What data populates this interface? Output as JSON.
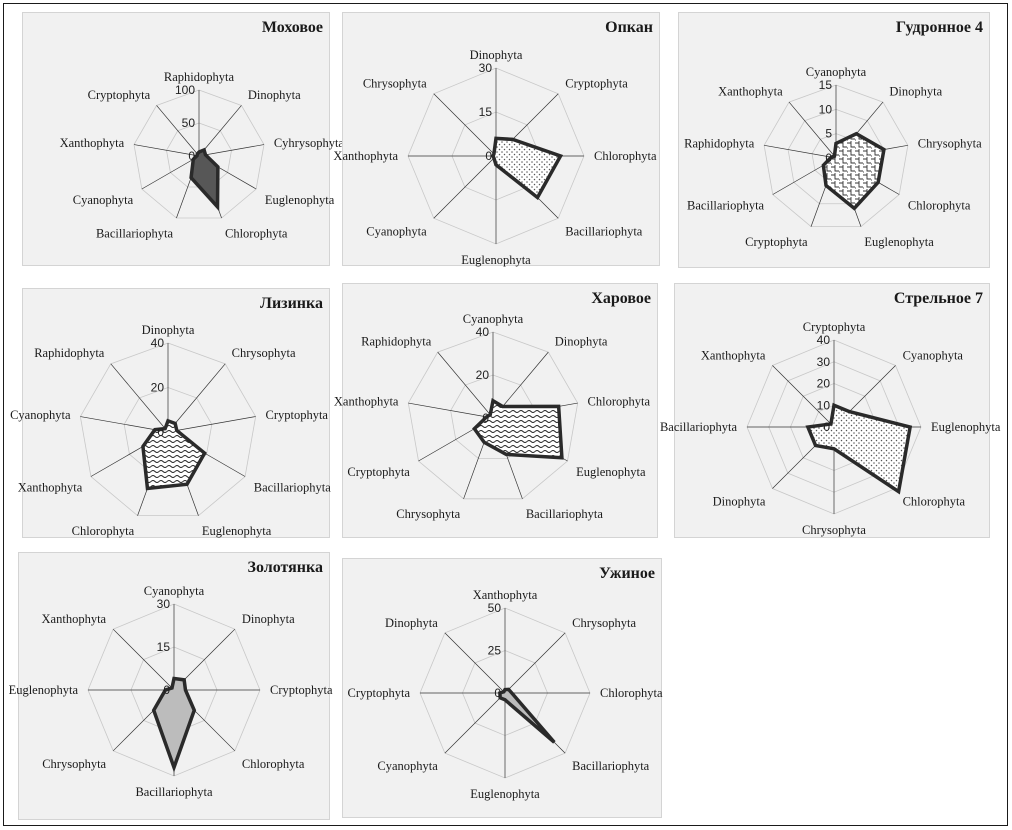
{
  "chart_data": [
    {
      "type": "radar",
      "title": "Моховое",
      "axes": [
        "Raphidophyta",
        "Dinophyta",
        "Cyhrysophyta",
        "Euglenophyta",
        "Chlorophyta",
        "Bacillariophyta",
        "Cyanophyta",
        "Xanthophyta",
        "Cryptophyta"
      ],
      "values": [
        6,
        12,
        10,
        33,
        82,
        35,
        10,
        3,
        4
      ],
      "rmax": 100,
      "ticks": [
        0,
        50,
        100
      ],
      "fill": "solid-dark"
    },
    {
      "type": "radar",
      "title": "Опкан",
      "axes": [
        "Dinophyta",
        "Cryptophyta",
        "Chlorophyta",
        "Bacillariophyta",
        "Euglenophyta",
        "Cyanophyta",
        "Xanthophyta",
        "Chrysophyta"
      ],
      "values": [
        6,
        8,
        22,
        20,
        3,
        1,
        1,
        1
      ],
      "rmax": 30,
      "ticks": [
        0,
        15,
        30
      ],
      "fill": "dots"
    },
    {
      "type": "radar",
      "title": "Гудронное 4",
      "axes": [
        "Cyanophyta",
        "Dinophyta",
        "Chrysophyta",
        "Chlorophyta",
        "Euglenophyta",
        "Cryptophyta",
        "Bacillariophyta",
        "Raphidophyta",
        "Xanthophyta"
      ],
      "values": [
        3,
        6.5,
        10,
        10,
        11,
        6,
        3,
        1,
        0.5
      ],
      "rmax": 15,
      "ticks": [
        0,
        5,
        10,
        15
      ],
      "fill": "weave"
    },
    {
      "type": "radar",
      "title": "Лизинка",
      "axes": [
        "Dinophyta",
        "Chrysophyta",
        "Cryptophyta",
        "Bacillariophyta",
        "Euglenophyta",
        "Chlorophyta",
        "Xanthophyta",
        "Cyanophyta",
        "Raphidophyta"
      ],
      "values": [
        5,
        5,
        4,
        19,
        25,
        27,
        13,
        6,
        2
      ],
      "rmax": 40,
      "ticks": [
        0,
        20,
        40
      ],
      "fill": "waves"
    },
    {
      "type": "radar",
      "title": "Харовое",
      "axes": [
        "Cyanophyta",
        "Dinophyta",
        "Chlorophyta",
        "Euglenophyta",
        "Bacillariophyta",
        "Chrysophyta",
        "Cryptophyta",
        "Xanthophyta",
        "Raphidophyta"
      ],
      "values": [
        8,
        7,
        31,
        37,
        18,
        12,
        10,
        3,
        2
      ],
      "rmax": 40,
      "ticks": [
        0,
        20,
        40
      ],
      "fill": "waves"
    },
    {
      "type": "radar",
      "title": "Стрельное 7",
      "axes": [
        "Cryptophyta",
        "Cyanophyta",
        "Euglenophyta",
        "Chlorophyta",
        "Chrysophyta",
        "Dinophyta",
        "Bacillariophyta",
        "Xanthophyta"
      ],
      "values": [
        10,
        10,
        35,
        42,
        10,
        12,
        12,
        2
      ],
      "rmax": 40,
      "ticks": [
        0,
        10,
        20,
        30,
        40
      ],
      "fill": "dots"
    },
    {
      "type": "radar",
      "title": "Золотянка",
      "axes": [
        "Cyanophyta",
        "Dinophyta",
        "Cryptophyta",
        "Chlorophyta",
        "Bacillariophyta",
        "Chrysophyta",
        "Euglenophyta",
        "Xanthophyta"
      ],
      "values": [
        4,
        5,
        4,
        10,
        27,
        10,
        3,
        1
      ],
      "rmax": 30,
      "ticks": [
        0,
        15,
        30
      ],
      "fill": "solid-light"
    },
    {
      "type": "radar",
      "title": "Ужиное",
      "axes": [
        "Xanthophyta",
        "Chrysophyta",
        "Chlorophyta",
        "Bacillariophyta",
        "Euglenophyta",
        "Cyanophyta",
        "Cryptophyta",
        "Dinophyta"
      ],
      "values": [
        2,
        3,
        4,
        41,
        4,
        4,
        3,
        1
      ],
      "rmax": 50,
      "ticks": [
        0,
        25,
        50
      ],
      "fill": "solid-light"
    }
  ]
}
